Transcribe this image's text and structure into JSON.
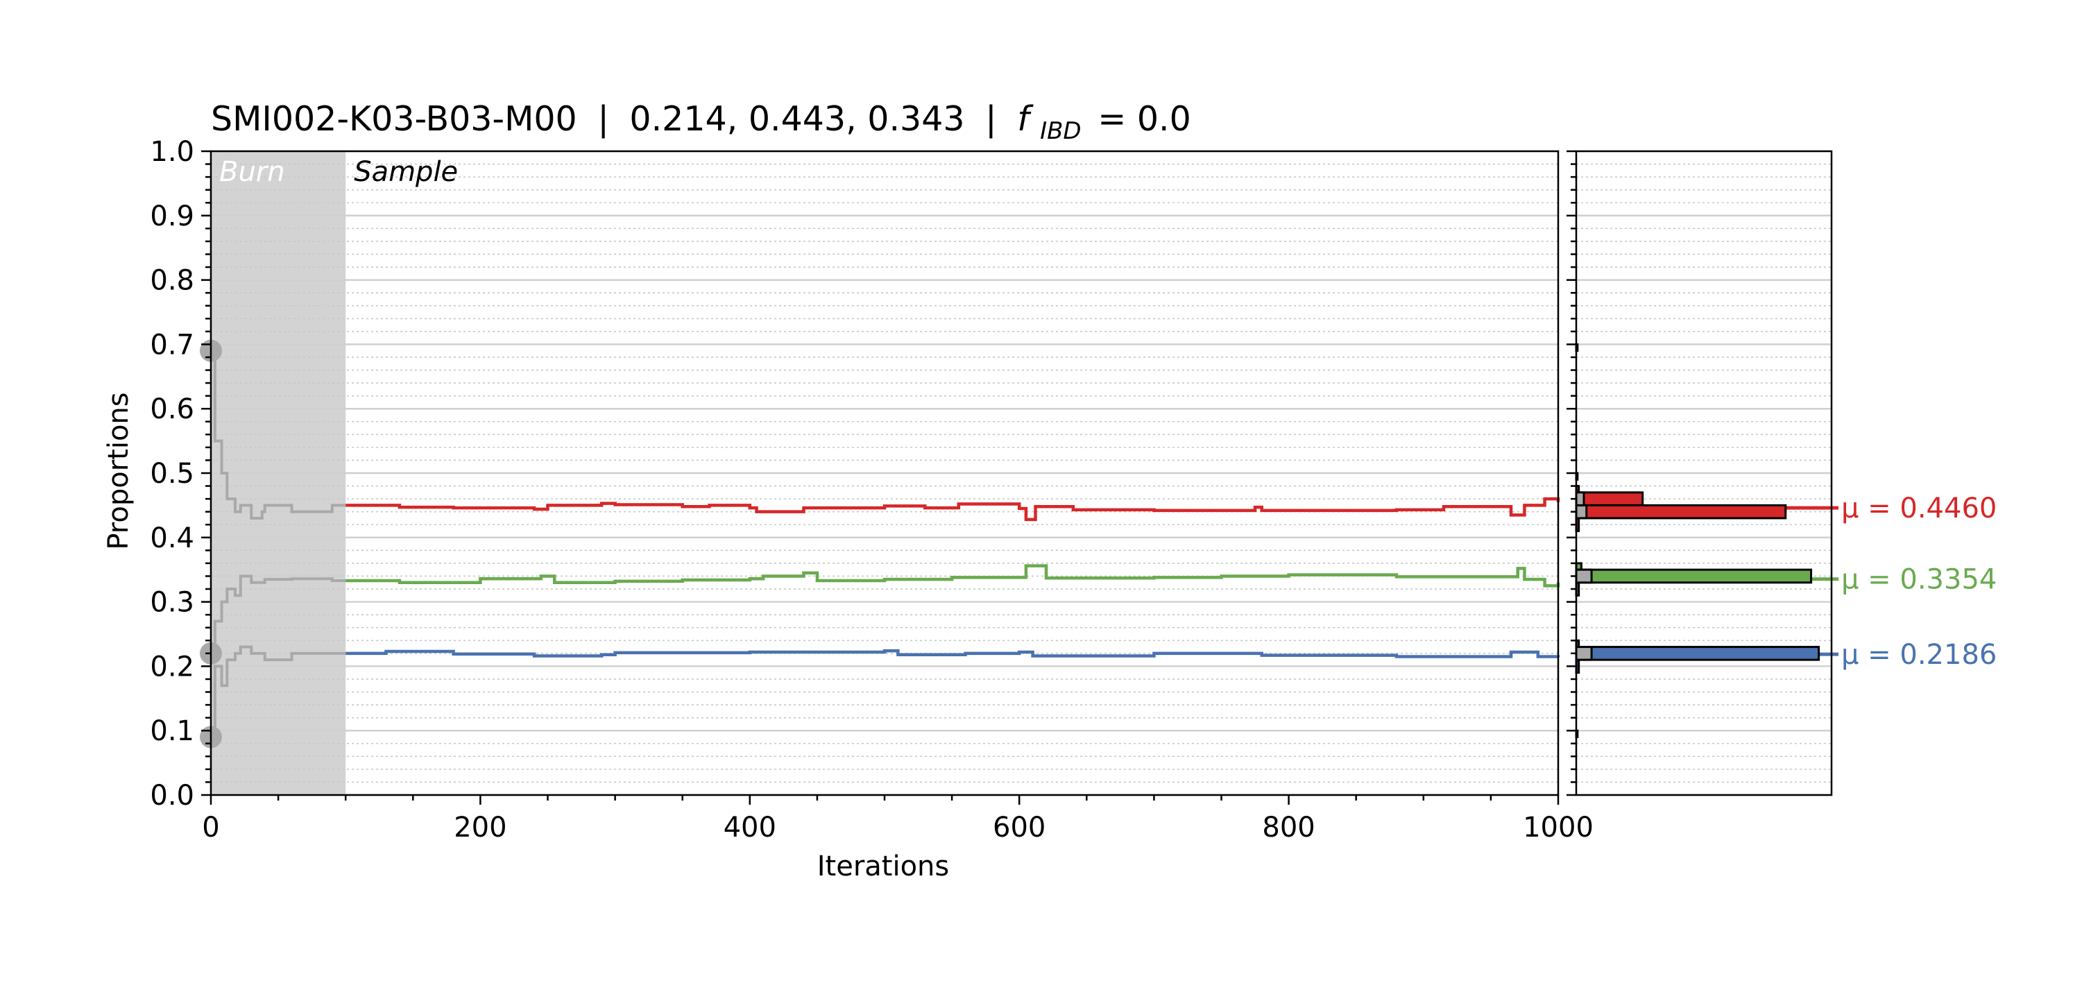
{
  "chart_data": {
    "type": "line",
    "title": {
      "sample_id": "SMI002-K03-B03-M00",
      "separator": "|",
      "values": "0.214, 0.443, 0.343",
      "f_symbol": "f",
      "f_subscript": "IBD",
      "f_equals": "= 0.0"
    },
    "xlabel": "Iterations",
    "ylabel": "Proportions",
    "xlim": [
      0,
      1000
    ],
    "ylim": [
      0.0,
      1.0
    ],
    "x_ticks": [
      "0",
      "200",
      "400",
      "600",
      "800",
      "1000"
    ],
    "y_ticks": [
      "0.0",
      "0.1",
      "0.2",
      "0.3",
      "0.4",
      "0.5",
      "0.6",
      "0.7",
      "0.8",
      "0.9",
      "1.0"
    ],
    "grid": true,
    "regions": {
      "burn": {
        "label": "Burn",
        "x_range": [
          0,
          100
        ],
        "color": "#d3d3d3"
      },
      "sample": {
        "label": "Sample",
        "x_range": [
          100,
          1000
        ]
      }
    },
    "initial_points": [
      0.69,
      0.22,
      0.09
    ],
    "series": [
      {
        "color": "#d62728",
        "mean_label": "μ = 0.4460",
        "mean": 0.446,
        "trace": [
          [
            0,
            0.69
          ],
          [
            3,
            0.55
          ],
          [
            8,
            0.5
          ],
          [
            12,
            0.46
          ],
          [
            18,
            0.44
          ],
          [
            22,
            0.45
          ],
          [
            30,
            0.43
          ],
          [
            38,
            0.44
          ],
          [
            40,
            0.45
          ],
          [
            60,
            0.44
          ],
          [
            90,
            0.45
          ],
          [
            100,
            0.45
          ],
          [
            140,
            0.447
          ],
          [
            180,
            0.446
          ],
          [
            240,
            0.444
          ],
          [
            250,
            0.45
          ],
          [
            290,
            0.453
          ],
          [
            300,
            0.451
          ],
          [
            350,
            0.448
          ],
          [
            370,
            0.45
          ],
          [
            400,
            0.446
          ],
          [
            405,
            0.44
          ],
          [
            440,
            0.446
          ],
          [
            470,
            0.446
          ],
          [
            500,
            0.449
          ],
          [
            530,
            0.446
          ],
          [
            555,
            0.452
          ],
          [
            600,
            0.445
          ],
          [
            605,
            0.428
          ],
          [
            612,
            0.448
          ],
          [
            640,
            0.443
          ],
          [
            700,
            0.442
          ],
          [
            775,
            0.447
          ],
          [
            780,
            0.442
          ],
          [
            880,
            0.443
          ],
          [
            915,
            0.448
          ],
          [
            965,
            0.435
          ],
          [
            975,
            0.45
          ],
          [
            990,
            0.46
          ],
          [
            1000,
            0.455
          ]
        ],
        "hist": [
          [
            0.45,
            0.47,
            0.26
          ],
          [
            0.43,
            0.45,
            0.82
          ],
          [
            0.47,
            0.48,
            0.01
          ],
          [
            0.41,
            0.43,
            0.01
          ]
        ]
      },
      {
        "color": "#6aaa4f",
        "mean_label": "μ = 0.3354",
        "mean": 0.3354,
        "trace": [
          [
            0,
            0.22
          ],
          [
            3,
            0.27
          ],
          [
            8,
            0.3
          ],
          [
            12,
            0.32
          ],
          [
            18,
            0.31
          ],
          [
            22,
            0.34
          ],
          [
            30,
            0.33
          ],
          [
            40,
            0.335
          ],
          [
            60,
            0.336
          ],
          [
            90,
            0.333
          ],
          [
            100,
            0.333
          ],
          [
            140,
            0.33
          ],
          [
            200,
            0.336
          ],
          [
            245,
            0.34
          ],
          [
            255,
            0.33
          ],
          [
            300,
            0.332
          ],
          [
            350,
            0.334
          ],
          [
            400,
            0.336
          ],
          [
            410,
            0.34
          ],
          [
            440,
            0.345
          ],
          [
            450,
            0.333
          ],
          [
            500,
            0.335
          ],
          [
            550,
            0.338
          ],
          [
            600,
            0.338
          ],
          [
            605,
            0.356
          ],
          [
            620,
            0.337
          ],
          [
            700,
            0.338
          ],
          [
            750,
            0.34
          ],
          [
            800,
            0.342
          ],
          [
            880,
            0.339
          ],
          [
            970,
            0.352
          ],
          [
            975,
            0.335
          ],
          [
            990,
            0.325
          ],
          [
            1000,
            0.33
          ]
        ],
        "hist": [
          [
            0.33,
            0.35,
            0.92
          ],
          [
            0.35,
            0.36,
            0.02
          ],
          [
            0.31,
            0.33,
            0.01
          ]
        ]
      },
      {
        "color": "#4a72b0",
        "mean_label": "μ = 0.2186",
        "mean": 0.2186,
        "trace": [
          [
            0,
            0.09
          ],
          [
            3,
            0.2
          ],
          [
            8,
            0.17
          ],
          [
            12,
            0.21
          ],
          [
            18,
            0.22
          ],
          [
            22,
            0.23
          ],
          [
            30,
            0.22
          ],
          [
            40,
            0.21
          ],
          [
            60,
            0.22
          ],
          [
            90,
            0.22
          ],
          [
            100,
            0.22
          ],
          [
            130,
            0.223
          ],
          [
            180,
            0.219
          ],
          [
            240,
            0.216
          ],
          [
            290,
            0.218
          ],
          [
            300,
            0.221
          ],
          [
            400,
            0.222
          ],
          [
            500,
            0.224
          ],
          [
            510,
            0.218
          ],
          [
            560,
            0.22
          ],
          [
            600,
            0.222
          ],
          [
            610,
            0.216
          ],
          [
            700,
            0.22
          ],
          [
            780,
            0.217
          ],
          [
            880,
            0.215
          ],
          [
            965,
            0.222
          ],
          [
            985,
            0.215
          ],
          [
            1000,
            0.214
          ]
        ],
        "hist": [
          [
            0.21,
            0.23,
            0.95
          ],
          [
            0.23,
            0.24,
            0.01
          ],
          [
            0.19,
            0.21,
            0.01
          ]
        ]
      }
    ],
    "hist_gray": [
      [
        0.21,
        0.23,
        0.06
      ],
      [
        0.33,
        0.35,
        0.06
      ],
      [
        0.43,
        0.45,
        0.04
      ],
      [
        0.45,
        0.47,
        0.03
      ],
      [
        0.69,
        0.7,
        0.005
      ],
      [
        0.49,
        0.5,
        0.005
      ],
      [
        0.09,
        0.1,
        0.005
      ]
    ]
  }
}
